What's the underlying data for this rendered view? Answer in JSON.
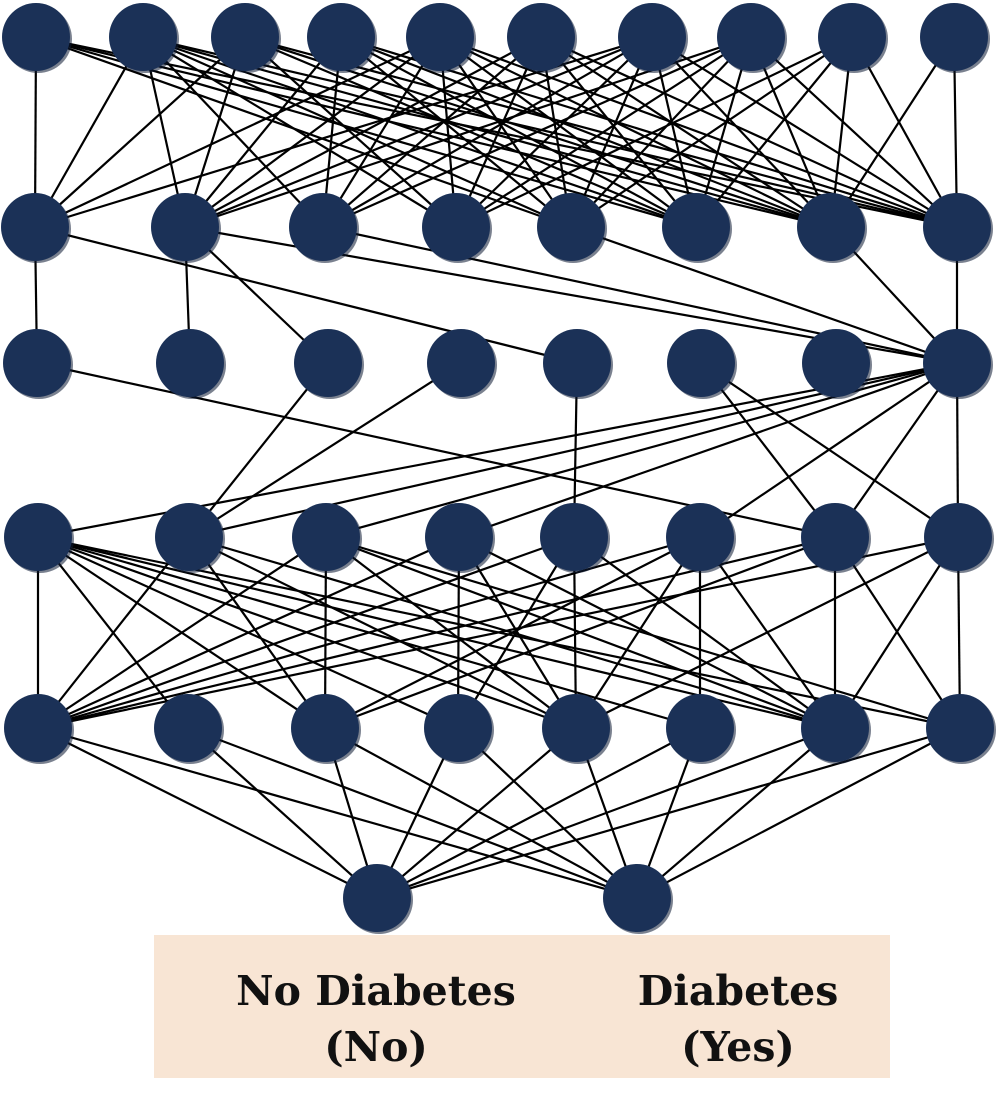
{
  "diagram": {
    "node_color": "#1b3157",
    "edge_color": "#000000",
    "panel_color": "#f8e5d4",
    "layers": [
      {
        "name": "input",
        "units": 10
      },
      {
        "name": "hidden-1",
        "units": 8
      },
      {
        "name": "hidden-2",
        "units": 8
      },
      {
        "name": "hidden-3",
        "units": 8
      },
      {
        "name": "hidden-4",
        "units": 8
      },
      {
        "name": "output",
        "units": 2
      }
    ],
    "edges": [
      [
        [
          0,
          0
        ],
        [
          0,
          4
        ],
        [
          0,
          5
        ],
        [
          0,
          6
        ],
        [
          0,
          7
        ],
        [
          1,
          0
        ],
        [
          1,
          1
        ],
        [
          1,
          2
        ],
        [
          1,
          3
        ],
        [
          1,
          4
        ],
        [
          1,
          5
        ],
        [
          1,
          6
        ],
        [
          1,
          7
        ],
        [
          2,
          0
        ],
        [
          2,
          1
        ],
        [
          2,
          3
        ],
        [
          2,
          5
        ],
        [
          2,
          6
        ],
        [
          2,
          7
        ],
        [
          3,
          1
        ],
        [
          3,
          2
        ],
        [
          3,
          4
        ],
        [
          3,
          5
        ],
        [
          3,
          6
        ],
        [
          3,
          7
        ],
        [
          4,
          0
        ],
        [
          4,
          1
        ],
        [
          4,
          2
        ],
        [
          4,
          3
        ],
        [
          4,
          4
        ],
        [
          4,
          5
        ],
        [
          4,
          6
        ],
        [
          4,
          7
        ],
        [
          5,
          1
        ],
        [
          5,
          2
        ],
        [
          5,
          3
        ],
        [
          5,
          4
        ],
        [
          5,
          5
        ],
        [
          5,
          6
        ],
        [
          5,
          7
        ],
        [
          6,
          0
        ],
        [
          6,
          1
        ],
        [
          6,
          2
        ],
        [
          6,
          3
        ],
        [
          6,
          4
        ],
        [
          6,
          5
        ],
        [
          6,
          6
        ],
        [
          6,
          7
        ],
        [
          7,
          1
        ],
        [
          7,
          2
        ],
        [
          7,
          3
        ],
        [
          7,
          4
        ],
        [
          7,
          5
        ],
        [
          7,
          6
        ],
        [
          7,
          7
        ],
        [
          8,
          3
        ],
        [
          8,
          4
        ],
        [
          8,
          5
        ],
        [
          8,
          6
        ],
        [
          8,
          7
        ],
        [
          9,
          6
        ],
        [
          9,
          7
        ]
      ],
      [
        [
          0,
          0
        ],
        [
          0,
          4
        ],
        [
          1,
          1
        ],
        [
          1,
          2
        ],
        [
          1,
          7
        ],
        [
          2,
          7
        ],
        [
          4,
          7
        ],
        [
          6,
          7
        ],
        [
          7,
          7
        ]
      ],
      [
        [
          0,
          6
        ],
        [
          2,
          1
        ],
        [
          3,
          1
        ],
        [
          4,
          4
        ],
        [
          5,
          6
        ],
        [
          5,
          7
        ],
        [
          7,
          0
        ],
        [
          7,
          1
        ],
        [
          7,
          2
        ],
        [
          7,
          3
        ],
        [
          7,
          5
        ],
        [
          7,
          6
        ],
        [
          7,
          7
        ]
      ],
      [
        [
          0,
          0
        ],
        [
          0,
          1
        ],
        [
          0,
          2
        ],
        [
          0,
          3
        ],
        [
          0,
          4
        ],
        [
          0,
          5
        ],
        [
          0,
          6
        ],
        [
          0,
          7
        ],
        [
          1,
          0
        ],
        [
          1,
          2
        ],
        [
          1,
          4
        ],
        [
          1,
          6
        ],
        [
          2,
          0
        ],
        [
          2,
          2
        ],
        [
          2,
          4
        ],
        [
          2,
          6
        ],
        [
          2,
          7
        ],
        [
          3,
          0
        ],
        [
          3,
          3
        ],
        [
          3,
          4
        ],
        [
          3,
          6
        ],
        [
          4,
          0
        ],
        [
          4,
          3
        ],
        [
          4,
          4
        ],
        [
          4,
          6
        ],
        [
          5,
          0
        ],
        [
          5,
          2
        ],
        [
          5,
          4
        ],
        [
          5,
          5
        ],
        [
          5,
          6
        ],
        [
          6,
          0
        ],
        [
          6,
          2
        ],
        [
          6,
          6
        ],
        [
          6,
          7
        ],
        [
          7,
          0
        ],
        [
          7,
          4
        ],
        [
          7,
          6
        ],
        [
          7,
          7
        ]
      ],
      [
        [
          0,
          0
        ],
        [
          0,
          1
        ],
        [
          1,
          0
        ],
        [
          1,
          1
        ],
        [
          2,
          0
        ],
        [
          2,
          1
        ],
        [
          3,
          0
        ],
        [
          3,
          1
        ],
        [
          4,
          0
        ],
        [
          4,
          1
        ],
        [
          5,
          0
        ],
        [
          5,
          1
        ],
        [
          6,
          0
        ],
        [
          6,
          1
        ],
        [
          7,
          0
        ],
        [
          7,
          1
        ]
      ]
    ]
  },
  "outputs": {
    "no": {
      "line1": "No Diabetes",
      "line2": "(No)"
    },
    "yes": {
      "line1": "Diabetes",
      "line2": "(Yes)"
    }
  }
}
